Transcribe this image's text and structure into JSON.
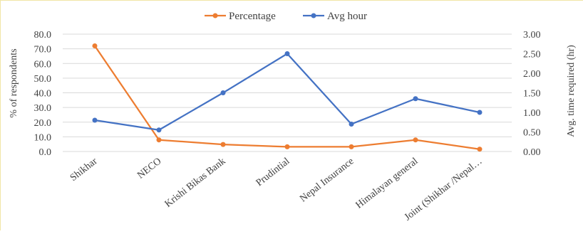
{
  "chart_data": {
    "type": "line",
    "categories": [
      "Shikhar",
      "NECO",
      "Krishi Bikas Bank",
      "Prudintial",
      "Nepal Insurance",
      "Himalayan general",
      "Joint (Shikhar /Nepal…"
    ],
    "series": [
      {
        "name": "Percentage",
        "axis": "left",
        "color": "#ed7d31",
        "values": [
          72.0,
          7.9,
          4.8,
          3.2,
          3.2,
          7.9,
          1.6
        ]
      },
      {
        "name": "Avg hour",
        "axis": "right",
        "color": "#4472c4",
        "values": [
          0.8,
          0.55,
          1.5,
          2.5,
          0.7,
          1.35,
          1.0
        ]
      }
    ],
    "ylabel": "% of respondents",
    "y2label": "Avg. time required (hr)",
    "ylim": [
      0,
      80
    ],
    "y2lim": [
      0,
      3
    ],
    "yticks": [
      "0.0",
      "10.0",
      "20.0",
      "30.0",
      "40.0",
      "50.0",
      "60.0",
      "70.0",
      "80.0"
    ],
    "y2ticks": [
      "0.00",
      "0.50",
      "1.00",
      "1.50",
      "2.00",
      "2.50",
      "3.00"
    ],
    "grid": true,
    "legend_position": "top"
  }
}
